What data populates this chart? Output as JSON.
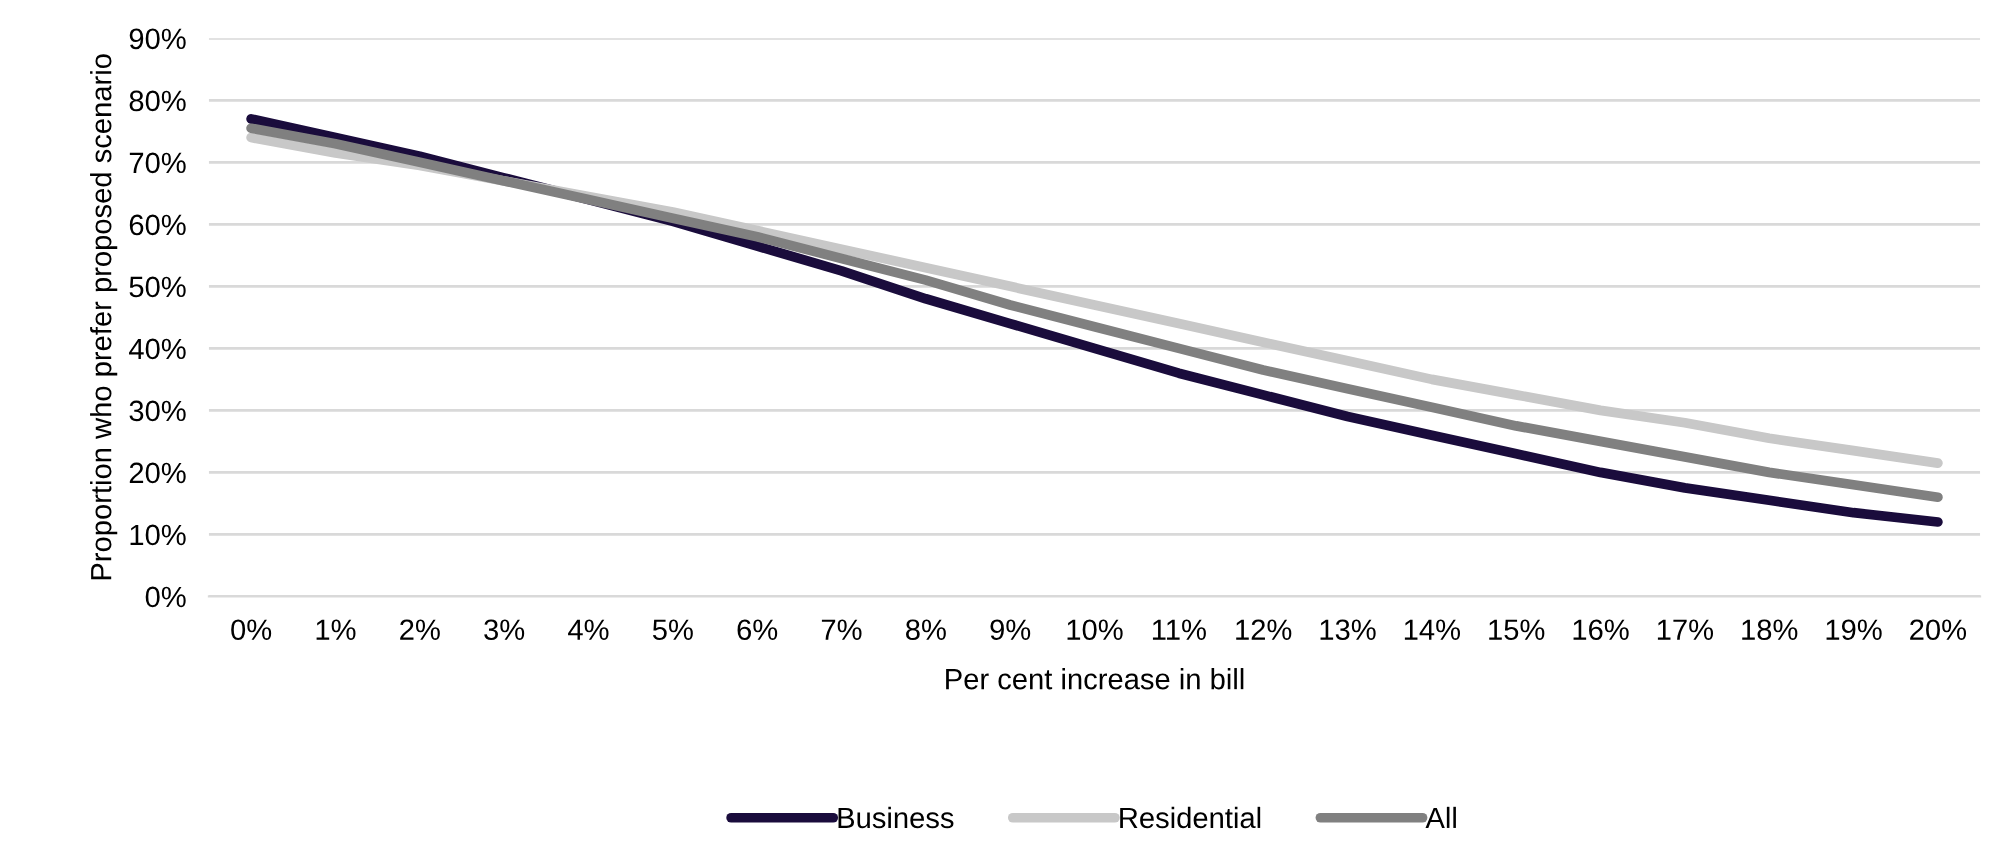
{
  "chart_data": {
    "type": "line",
    "xlabel": "Per cent increase in bill",
    "ylabel": "Proportion who prefer proposed scenario",
    "categories": [
      "0%",
      "1%",
      "2%",
      "3%",
      "4%",
      "5%",
      "6%",
      "7%",
      "8%",
      "9%",
      "10%",
      "11%",
      "12%",
      "13%",
      "14%",
      "15%",
      "16%",
      "17%",
      "18%",
      "19%",
      "20%"
    ],
    "series": [
      {
        "name": "Business",
        "color": "#1a0c3c",
        "values": [
          77,
          74,
          71,
          67.5,
          64,
          60.5,
          56.5,
          52.5,
          48,
          44,
          40,
          36,
          32.5,
          29,
          26,
          23,
          20,
          17.5,
          15.5,
          13.5,
          12
        ]
      },
      {
        "name": "Residential",
        "color": "#c8c8c8",
        "values": [
          74,
          71.5,
          69.5,
          67,
          64.5,
          62,
          59,
          56,
          53,
          50,
          47,
          44,
          41,
          38,
          35,
          32.5,
          30,
          28,
          25.5,
          23.5,
          21.5
        ]
      },
      {
        "name": "All",
        "color": "#808080",
        "values": [
          75.5,
          73,
          70,
          67,
          64,
          61,
          58,
          54.5,
          51,
          47,
          43.5,
          40,
          36.5,
          33.5,
          30.5,
          27.5,
          25,
          22.5,
          20,
          18,
          16
        ]
      }
    ],
    "ylim": [
      0,
      90
    ],
    "yticks": [
      {
        "value": 0,
        "label": "0%"
      },
      {
        "value": 10,
        "label": "10%"
      },
      {
        "value": 20,
        "label": "20%"
      },
      {
        "value": 30,
        "label": "30%"
      },
      {
        "value": 40,
        "label": "40%"
      },
      {
        "value": 50,
        "label": "50%"
      },
      {
        "value": 60,
        "label": "60%"
      },
      {
        "value": 70,
        "label": "70%"
      },
      {
        "value": 80,
        "label": "80%"
      },
      {
        "value": 90,
        "label": "90%"
      }
    ],
    "grid": "y",
    "legend": "bottom",
    "marker": "none",
    "line_style": "solid"
  }
}
